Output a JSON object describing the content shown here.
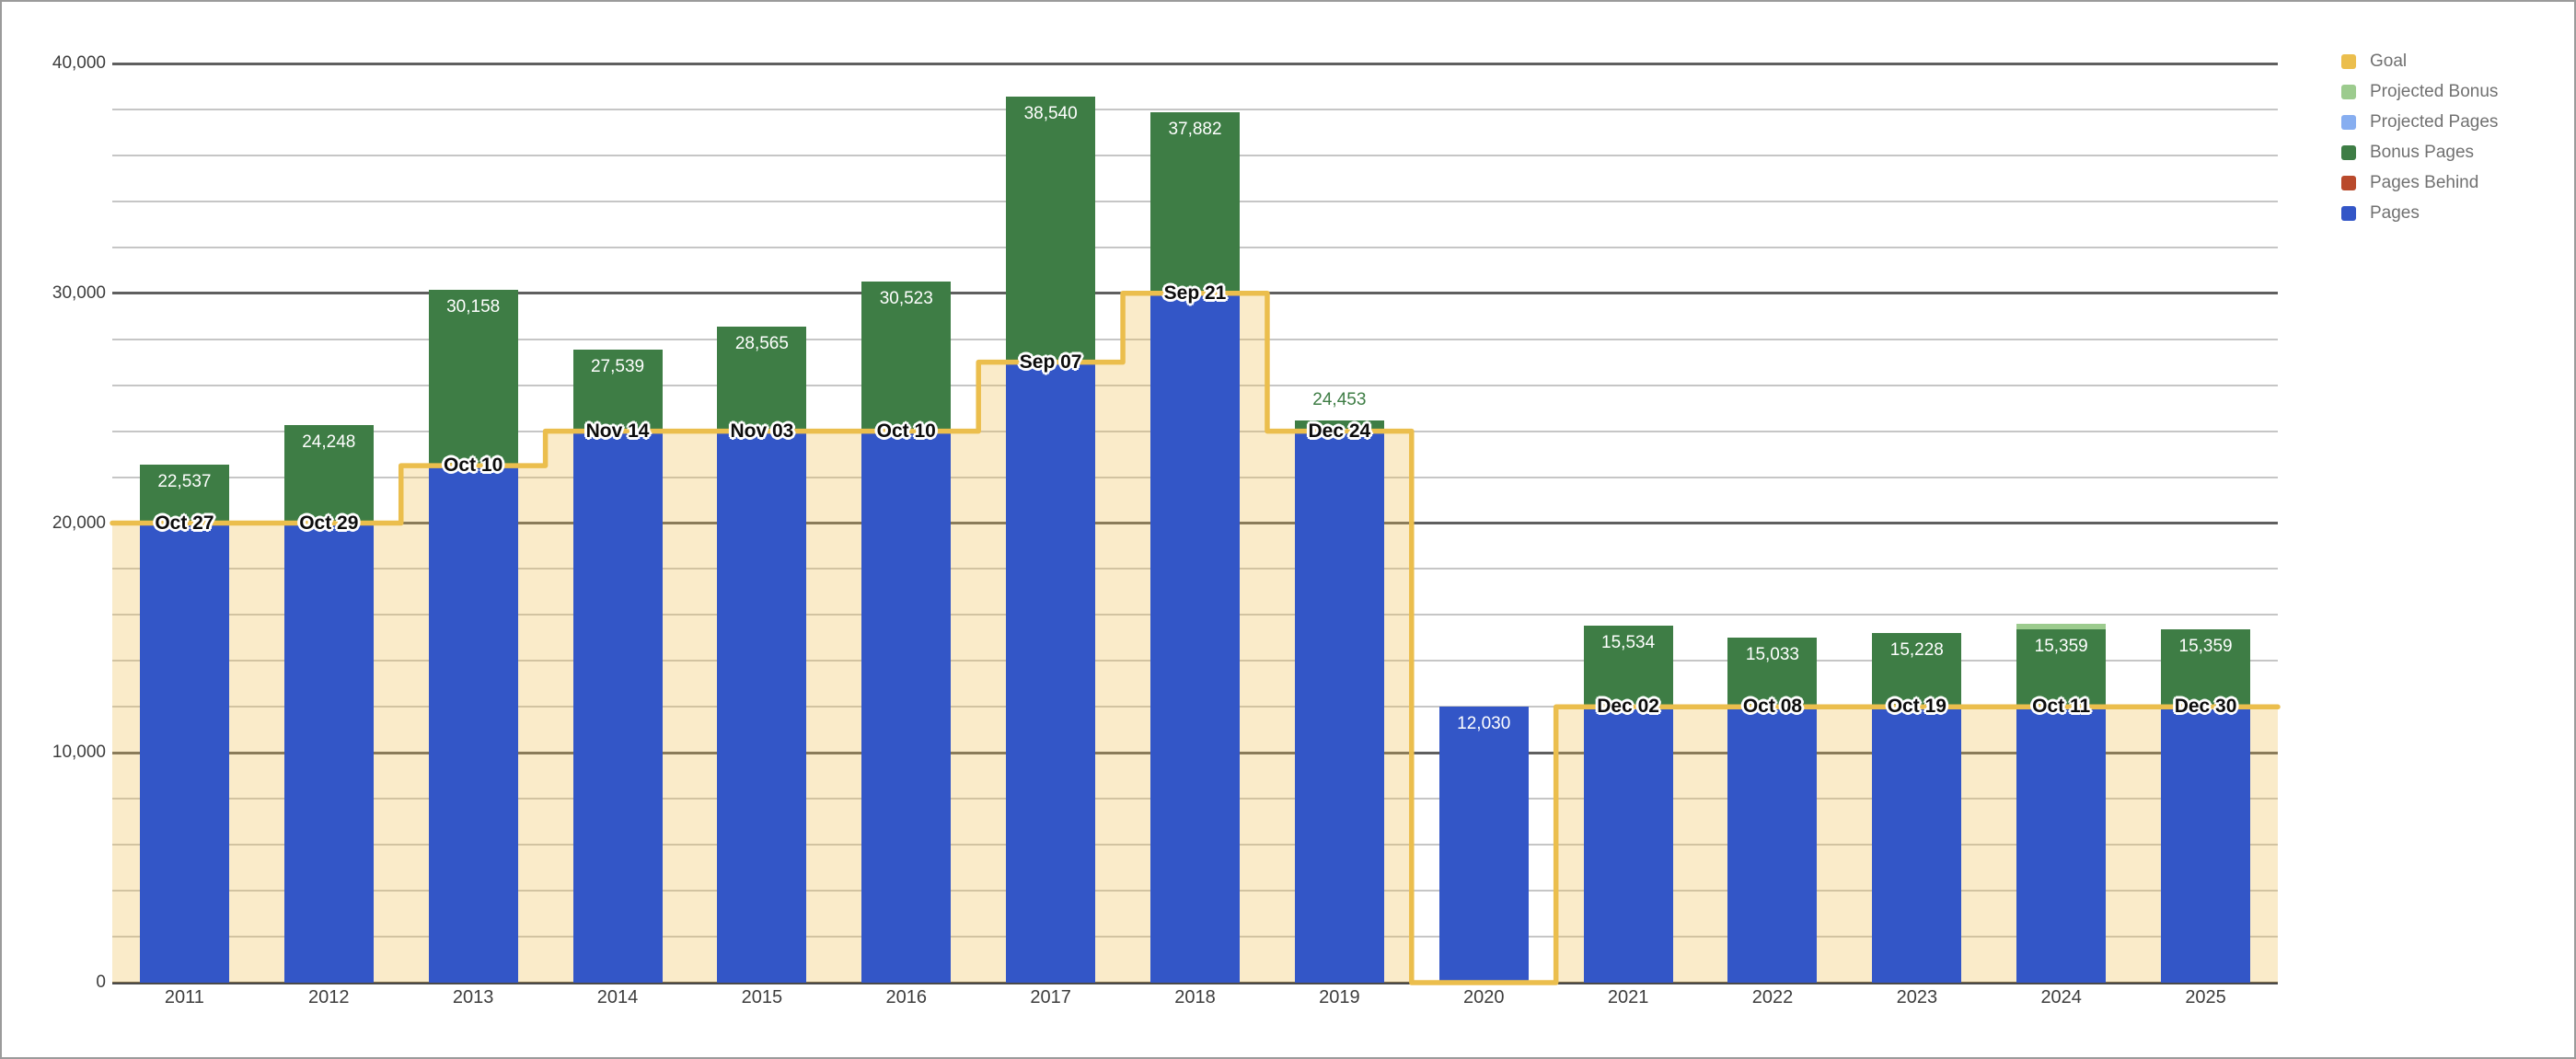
{
  "chart_data": {
    "type": "bar",
    "subtype": "stacked-columns-with-stepped-goal-line",
    "title": "",
    "xlabel": "",
    "ylabel": "",
    "y_axis": {
      "min": 0,
      "max": 40000,
      "minor_step": 2000,
      "major_step": 10000,
      "tick_values": [
        0,
        10000,
        20000,
        30000,
        40000
      ],
      "tick_labels": [
        "0",
        "10,000",
        "20,000",
        "30,000",
        "40,000"
      ]
    },
    "grid": "on",
    "legend_position": "right",
    "categories": [
      "2011",
      "2012",
      "2013",
      "2014",
      "2015",
      "2016",
      "2017",
      "2018",
      "2019",
      "2020",
      "2021",
      "2022",
      "2023",
      "2024",
      "2025"
    ],
    "bars": [
      {
        "year": "2011",
        "goal": 20000,
        "total": 22537,
        "total_label": "22,537",
        "goal_date": "Oct 27",
        "label_placement": "inside-bonus"
      },
      {
        "year": "2012",
        "goal": 20000,
        "total": 24248,
        "total_label": "24,248",
        "goal_date": "Oct 29",
        "label_placement": "inside-bonus"
      },
      {
        "year": "2013",
        "goal": 22500,
        "total": 30158,
        "total_label": "30,158",
        "goal_date": "Oct 10",
        "label_placement": "inside-bonus"
      },
      {
        "year": "2014",
        "goal": 24000,
        "total": 27539,
        "total_label": "27,539",
        "goal_date": "Nov 14",
        "label_placement": "inside-bonus"
      },
      {
        "year": "2015",
        "goal": 24000,
        "total": 28565,
        "total_label": "28,565",
        "goal_date": "Nov 03",
        "label_placement": "inside-bonus"
      },
      {
        "year": "2016",
        "goal": 24000,
        "total": 30523,
        "total_label": "30,523",
        "goal_date": "Oct 10",
        "label_placement": "inside-bonus"
      },
      {
        "year": "2017",
        "goal": 27000,
        "total": 38540,
        "total_label": "38,540",
        "goal_date": "Sep 07",
        "label_placement": "inside-bonus"
      },
      {
        "year": "2018",
        "goal": 30000,
        "total": 37882,
        "total_label": "37,882",
        "goal_date": "Sep 21",
        "label_placement": "inside-bonus"
      },
      {
        "year": "2019",
        "goal": 24000,
        "total": 24453,
        "total_label": "24,453",
        "goal_date": "Dec 24",
        "label_placement": "above-bonus"
      },
      {
        "year": "2020",
        "goal": 0,
        "total": 12030,
        "total_label": "12,030",
        "goal_date": null,
        "label_placement": "inside-pages"
      },
      {
        "year": "2021",
        "goal": 12000,
        "total": 15534,
        "total_label": "15,534",
        "goal_date": "Dec 02",
        "label_placement": "inside-bonus"
      },
      {
        "year": "2022",
        "goal": 12000,
        "total": 15033,
        "total_label": "15,033",
        "goal_date": "Oct 08",
        "label_placement": "inside-bonus"
      },
      {
        "year": "2023",
        "goal": 12000,
        "total": 15228,
        "total_label": "15,228",
        "goal_date": "Oct 19",
        "label_placement": "inside-bonus"
      },
      {
        "year": "2024",
        "goal": 12000,
        "total": 15359,
        "total_label": "15,359",
        "goal_date": "Oct 11",
        "label_placement": "inside-bonus",
        "projected_total": 15600
      },
      {
        "year": "2025",
        "goal": 12000,
        "total": 15359,
        "total_label": "15,359",
        "goal_date": "Dec 30",
        "label_placement": "inside-bonus"
      }
    ],
    "legend": [
      {
        "label": "Goal",
        "color": "#ebbe4d"
      },
      {
        "label": "Projected Bonus",
        "color": "#9ccb8e"
      },
      {
        "label": "Projected Pages",
        "color": "#87aef0"
      },
      {
        "label": "Bonus Pages",
        "color": "#3e7d45"
      },
      {
        "label": "Pages Behind",
        "color": "#b94a2c"
      },
      {
        "label": "Pages",
        "color": "#3356c7"
      }
    ],
    "colors": {
      "pages": "#3356c7",
      "bonus_pages": "#3e7d45",
      "projected_bonus": "#9ccb8e",
      "projected_pages": "#87aef0",
      "pages_behind": "#b94a2c",
      "goal_line": "#ebbe4d",
      "goal_area_fill": "rgba(237,190,77,0.30)",
      "minor_gridline": "#c6c6c6",
      "major_gridline": "#5f5f5f",
      "baseline": "#4a4a4a",
      "value_label": "#ffffff",
      "above_label": "#3e7d45",
      "axis_text": "#3d3d3d",
      "legend_text": "#717171"
    }
  }
}
